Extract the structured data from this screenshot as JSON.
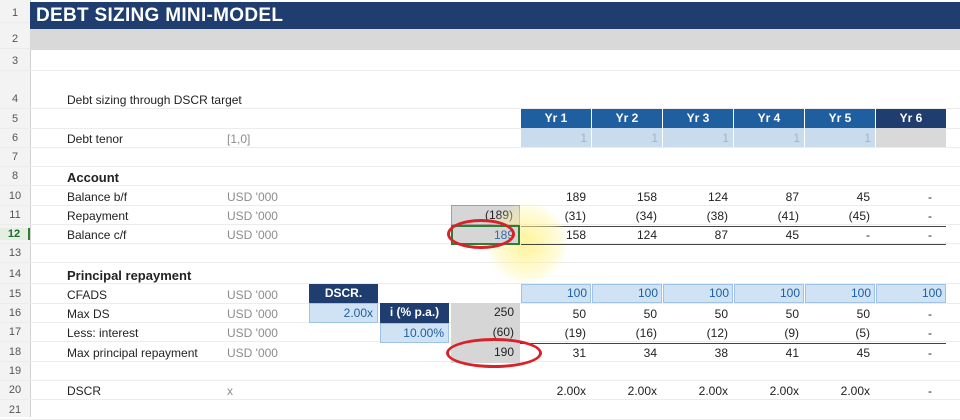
{
  "title": "DEBT SIZING MINI-MODEL",
  "row_numbers": [
    "1",
    "2",
    "3",
    "4",
    "5",
    "6",
    "7",
    "8",
    "10",
    "11",
    "12",
    "13",
    "14",
    "15",
    "16",
    "17",
    "18",
    "19",
    "20",
    "21"
  ],
  "subtitle": "Debt sizing through DSCR target",
  "years": [
    "Yr 1",
    "Yr 2",
    "Yr 3",
    "Yr 4",
    "Yr 5",
    "Yr 6"
  ],
  "debt_tenor": {
    "label": "Debt tenor",
    "unit": "[1,0]",
    "flags": [
      "1",
      "1",
      "1",
      "1",
      "1",
      ""
    ]
  },
  "account": {
    "heading": "Account",
    "balance_bf": {
      "label": "Balance b/f",
      "unit": "USD '000",
      "values": [
        "189",
        "158",
        "124",
        "87",
        "45",
        "-"
      ]
    },
    "repayment": {
      "label": "Repayment",
      "unit": "USD '000",
      "total": "(189)",
      "values": [
        "(31)",
        "(34)",
        "(38)",
        "(41)",
        "(45)",
        "-"
      ]
    },
    "balance_cf": {
      "label": "Balance c/f",
      "unit": "USD '000",
      "total": "189",
      "values": [
        "158",
        "124",
        "87",
        "45",
        "-",
        "-"
      ]
    }
  },
  "principal": {
    "heading": "Principal repayment",
    "cfads": {
      "label": "CFADS",
      "unit": "USD '000",
      "values": [
        "100",
        "100",
        "100",
        "100",
        "100",
        "100"
      ]
    },
    "max_ds": {
      "label": "Max DS",
      "unit": "USD '000",
      "total": "250",
      "values": [
        "50",
        "50",
        "50",
        "50",
        "50",
        "-"
      ]
    },
    "less_interest": {
      "label": "Less: interest",
      "unit": "USD '000",
      "total": "(60)",
      "values": [
        "(19)",
        "(16)",
        "(12)",
        "(9)",
        "(5)",
        "-"
      ]
    },
    "max_principal": {
      "label": "Max principal repayment",
      "unit": "USD '000",
      "total": "190",
      "values": [
        "31",
        "34",
        "38",
        "41",
        "45",
        "-"
      ]
    }
  },
  "dscr_box": {
    "label": "DSCR.",
    "value": "2.00x"
  },
  "interest_box": {
    "label": "i (% p.a.)",
    "value": "10.00%"
  },
  "dscr_row": {
    "label": "DSCR",
    "unit": "x",
    "values": [
      "2.00x",
      "2.00x",
      "2.00x",
      "2.00x",
      "2.00x",
      "-"
    ]
  },
  "colors": {
    "title_band": "#1f3d6e",
    "header_blue": "#1f5fa0",
    "input_fill": "#cfe3f5",
    "highlight_ring": "#d6232a"
  }
}
